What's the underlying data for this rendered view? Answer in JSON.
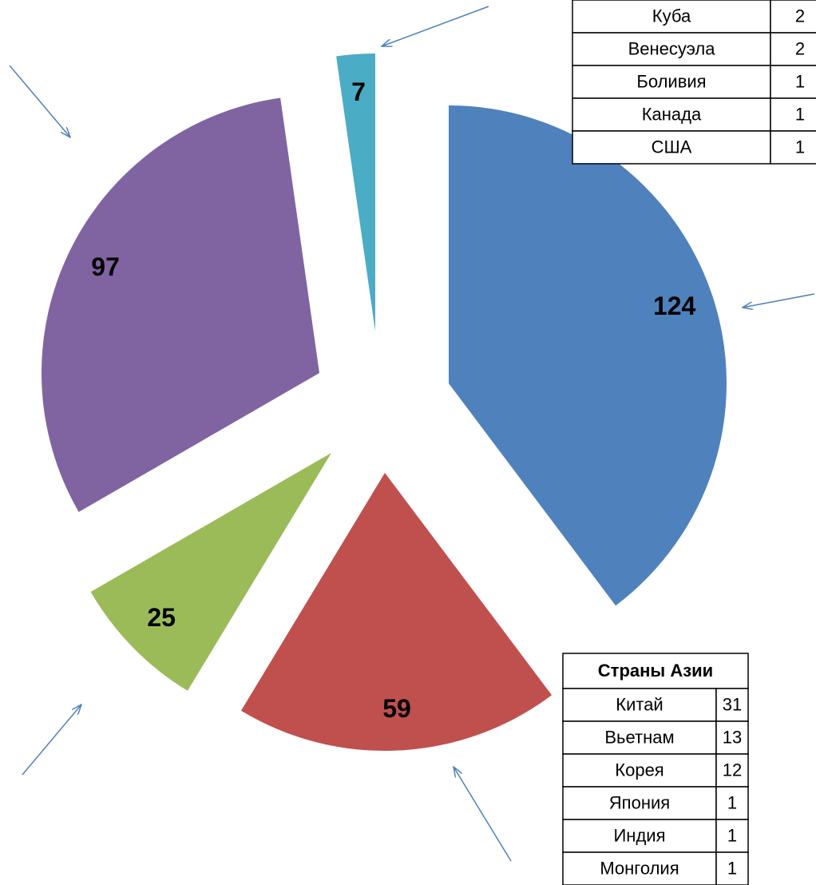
{
  "chart_data": {
    "type": "pie",
    "values": [
      124,
      59,
      25,
      97,
      7
    ],
    "colors": [
      "#4f81bd",
      "#c0504d",
      "#9bbb59",
      "#8064a2",
      "#4bacc6"
    ]
  },
  "tables": [
    {
      "rows": [
        [
          "Куба",
          "2"
        ],
        [
          "Венесуэла",
          "2"
        ],
        [
          "Боливия",
          "1"
        ],
        [
          "Канада",
          "1"
        ],
        [
          "США",
          "1"
        ]
      ]
    },
    {
      "header": "Страны Азии",
      "rows": [
        [
          "Китай",
          "31"
        ],
        [
          "Вьетнам",
          "13"
        ],
        [
          "Корея",
          "12"
        ],
        [
          "Япония",
          "1"
        ],
        [
          "Индия",
          "1"
        ],
        [
          "Монголия",
          "1"
        ]
      ]
    }
  ]
}
